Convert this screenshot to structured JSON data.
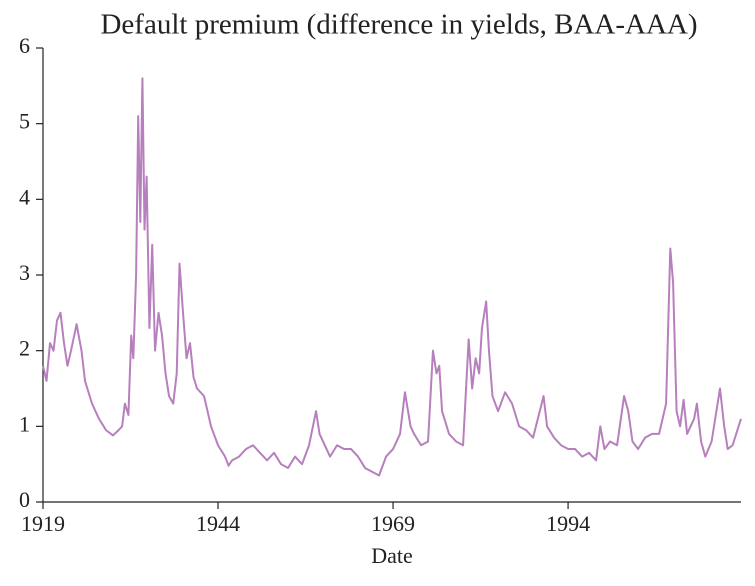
{
  "chart_data": {
    "type": "line",
    "title": "Default premium (difference in yields, BAA-AAA)",
    "xlabel": "Date",
    "color": "#b77fbd",
    "x": [
      1919,
      1919.5,
      1920,
      1920.5,
      1921,
      1921.5,
      1922,
      1922.5,
      1923,
      1923.8,
      1924.5,
      1925,
      1926,
      1927,
      1928,
      1929,
      1929.8,
      1930.3,
      1930.7,
      1931.2,
      1931.6,
      1931.9,
      1932.3,
      1932.6,
      1932.9,
      1933.2,
      1933.5,
      1933.8,
      1934.2,
      1934.6,
      1935,
      1935.5,
      1936,
      1936.5,
      1937,
      1937.6,
      1938.1,
      1938.5,
      1939,
      1939.5,
      1940,
      1940.5,
      1941,
      1942,
      1943,
      1944,
      1945,
      1945.5,
      1946,
      1947,
      1948,
      1949,
      1950,
      1951,
      1952,
      1953,
      1954,
      1955,
      1956,
      1957,
      1958,
      1958.5,
      1959,
      1960,
      1961,
      1962,
      1963,
      1964,
      1965,
      1966,
      1967,
      1968,
      1969,
      1970,
      1970.7,
      1971.5,
      1972,
      1973,
      1974,
      1974.7,
      1975.2,
      1975.6,
      1976,
      1977,
      1978,
      1979,
      1979.8,
      1980.3,
      1980.8,
      1981.3,
      1981.7,
      1982.3,
      1982.7,
      1983.2,
      1984,
      1985,
      1986,
      1987,
      1988,
      1989,
      1990.5,
      1991,
      1992,
      1993,
      1994,
      1995,
      1996,
      1997,
      1998,
      1998.6,
      1999.2,
      2000,
      2001,
      2002,
      2002.6,
      2003.2,
      2004,
      2005,
      2006,
      2007,
      2008,
      2008.6,
      2009,
      2009.5,
      2010,
      2010.5,
      2011,
      2012,
      2012.4,
      2013,
      2013.6,
      2014.5,
      2015.7,
      2016.3,
      2016.8,
      2017.5,
      2018.7
    ],
    "values": [
      1.8,
      1.6,
      2.1,
      2.0,
      2.4,
      2.5,
      2.1,
      1.8,
      2.0,
      2.35,
      2.0,
      1.6,
      1.3,
      1.1,
      0.95,
      0.88,
      0.95,
      1.0,
      1.3,
      1.15,
      2.2,
      1.9,
      3.0,
      5.1,
      3.7,
      5.6,
      3.6,
      4.3,
      2.3,
      3.4,
      2.0,
      2.5,
      2.2,
      1.7,
      1.4,
      1.3,
      1.7,
      3.15,
      2.5,
      1.9,
      2.1,
      1.65,
      1.5,
      1.4,
      1.0,
      0.75,
      0.6,
      0.48,
      0.55,
      0.6,
      0.7,
      0.75,
      0.65,
      0.55,
      0.65,
      0.5,
      0.45,
      0.6,
      0.5,
      0.75,
      1.2,
      0.9,
      0.8,
      0.6,
      0.75,
      0.7,
      0.7,
      0.6,
      0.45,
      0.4,
      0.35,
      0.6,
      0.7,
      0.9,
      1.45,
      1.0,
      0.9,
      0.75,
      0.8,
      2.0,
      1.7,
      1.8,
      1.2,
      0.9,
      0.8,
      0.75,
      2.15,
      1.5,
      1.9,
      1.7,
      2.3,
      2.65,
      2.0,
      1.4,
      1.2,
      1.45,
      1.3,
      1.0,
      0.95,
      0.85,
      1.4,
      1.0,
      0.85,
      0.75,
      0.7,
      0.7,
      0.6,
      0.65,
      0.55,
      1.0,
      0.7,
      0.8,
      0.75,
      1.4,
      1.2,
      0.8,
      0.7,
      0.85,
      0.9,
      0.9,
      1.3,
      3.35,
      2.9,
      1.2,
      1.0,
      1.35,
      0.9,
      1.1,
      1.3,
      0.8,
      0.6,
      0.8,
      1.5,
      1.0,
      0.7,
      0.75,
      1.1
    ],
    "xlim": [
      1919,
      2018.7
    ],
    "xticks": [
      1919,
      1944,
      1969,
      1994
    ],
    "ylim": [
      0,
      6
    ],
    "yticks": [
      0,
      1,
      2,
      3,
      4,
      5,
      6
    ],
    "grid": false
  }
}
